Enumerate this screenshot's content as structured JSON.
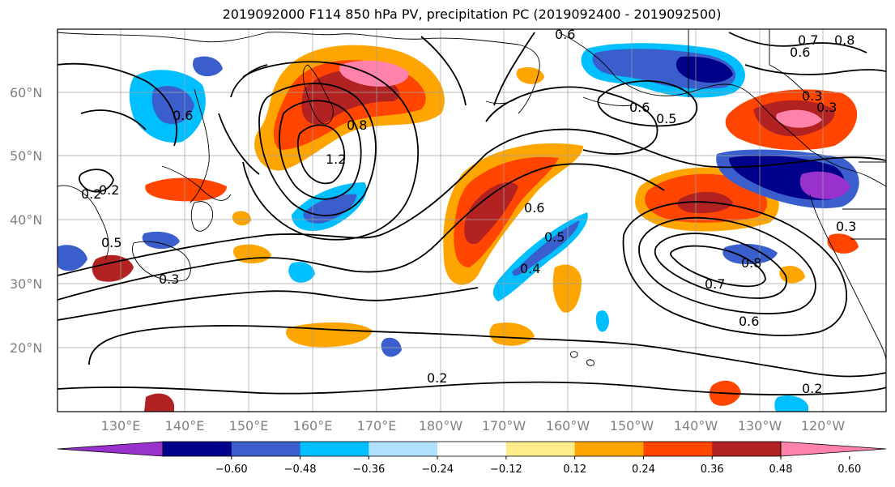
{
  "title": "2019092000 F114 850 hPa PV, precipitation PC (2019092400 - 2019092500)",
  "lat_labels": [
    "60°N",
    "50°N",
    "40°N",
    "30°N",
    "20°N"
  ],
  "lon_labels": [
    "130°E",
    "140°E",
    "150°E",
    "160°E",
    "170°E",
    "180°W",
    "170°W",
    "160°W",
    "150°W",
    "140°W",
    "130°W",
    "120°W"
  ],
  "colorbar": {
    "ticks": [
      "−0.60",
      "−0.48",
      "−0.36",
      "−0.24",
      "−0.12",
      "0.12",
      "0.24",
      "0.36",
      "0.48",
      "0.60"
    ],
    "colors": [
      "#9932cc",
      "#00008b",
      "#3a5fcd",
      "#00bfff",
      "#b0e2ff",
      "#ffffff",
      "#ffec8b",
      "#ffa500",
      "#ff4500",
      "#b22222",
      "#ff82ab"
    ]
  },
  "contour_labels": [
    "0.6",
    "0.7",
    "0.8",
    "0.6",
    "0.6",
    "0.5",
    "0.3",
    "0.2",
    "1.2",
    "0.8",
    "0.6",
    "0.2",
    "0.3",
    "0.5",
    "0.3",
    "0.6",
    "0.5",
    "0.4",
    "0.7",
    "0.8",
    "0.6",
    "0.3",
    "0.2",
    "0.2"
  ]
}
